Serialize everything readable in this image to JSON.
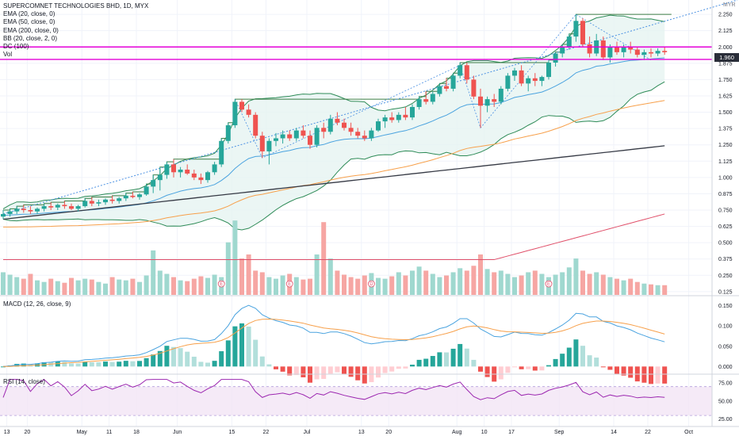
{
  "legend": {
    "title": "SUPERCOMNET TECHNOLOGIES BHD, 1D, MYX",
    "ema20": "EMA (20, close, 0)",
    "ema50": "EMA (50, close, 0)",
    "ema200": "EMA (200, close, 0)",
    "bb": "BB (20, close, 2, 0)",
    "dc": "DC (100)",
    "vol": "Vol"
  },
  "currency_label": "MYR",
  "last_price_label": "1.960",
  "macd_label": "MACD (12, 26, close, 9)",
  "rsi_label": "RSI (14, close)",
  "earnings_marker": "E",
  "dividend_marker": "D",
  "colors": {
    "up": "#26a69a",
    "down": "#ef5350",
    "ema20": "#4aa3df",
    "ema50": "#f7a04b",
    "ema200": "#363a45",
    "bb": "#2e8b57",
    "bb_fill": "#e6f4f1",
    "dc": "#3a7d44",
    "horizontal": "#e400d8",
    "trend": "#4a90e2",
    "macd": "#4aa3df",
    "signal": "#f7a04b",
    "rsi": "#9c27b0",
    "vol_ma": "#e0506a"
  },
  "chart_data": [
    {
      "type": "candlestick",
      "title": "SUPERCOMNET TECHNOLOGIES BHD, 1D, MYX",
      "x_tick_labels": [
        "13",
        "20",
        "May",
        "11",
        "18",
        "Jun",
        "15",
        "22",
        "Jul",
        "13",
        "20",
        "Aug",
        "10",
        "17",
        "Sep",
        "14",
        "22",
        "Oct"
      ],
      "y_tick_labels": [
        "2.250",
        "2.125",
        "2.000",
        "1.875",
        "1.750",
        "1.625",
        "1.500",
        "1.375",
        "1.250",
        "1.125",
        "1.000",
        "0.875",
        "0.750",
        "0.625",
        "0.500",
        "0.375",
        "0.250",
        "0.125"
      ],
      "ylim": [
        0.1,
        2.36
      ],
      "last_price": 1.96,
      "horizontal_levels": [
        2.0,
        1.905
      ],
      "ohlc": [
        [
          0.7,
          0.75,
          0.68,
          0.72
        ],
        [
          0.72,
          0.76,
          0.7,
          0.74
        ],
        [
          0.74,
          0.78,
          0.72,
          0.76
        ],
        [
          0.76,
          0.79,
          0.73,
          0.75
        ],
        [
          0.75,
          0.78,
          0.72,
          0.74
        ],
        [
          0.74,
          0.77,
          0.72,
          0.76
        ],
        [
          0.76,
          0.8,
          0.74,
          0.78
        ],
        [
          0.78,
          0.81,
          0.75,
          0.77
        ],
        [
          0.77,
          0.8,
          0.75,
          0.79
        ],
        [
          0.79,
          0.82,
          0.76,
          0.78
        ],
        [
          0.78,
          0.8,
          0.75,
          0.76
        ],
        [
          0.76,
          0.79,
          0.74,
          0.78
        ],
        [
          0.78,
          0.84,
          0.77,
          0.82
        ],
        [
          0.82,
          0.85,
          0.78,
          0.8
        ],
        [
          0.8,
          0.83,
          0.78,
          0.81
        ],
        [
          0.81,
          0.84,
          0.79,
          0.83
        ],
        [
          0.83,
          0.86,
          0.8,
          0.82
        ],
        [
          0.82,
          0.85,
          0.8,
          0.84
        ],
        [
          0.84,
          0.88,
          0.82,
          0.86
        ],
        [
          0.86,
          0.89,
          0.84,
          0.85
        ],
        [
          0.85,
          0.88,
          0.83,
          0.87
        ],
        [
          0.87,
          0.95,
          0.86,
          0.93
        ],
        [
          0.93,
          1.02,
          0.88,
          0.98
        ],
        [
          0.98,
          1.08,
          0.9,
          1.02
        ],
        [
          1.02,
          1.12,
          0.99,
          1.1
        ],
        [
          1.1,
          1.14,
          1.0,
          1.04
        ],
        [
          1.04,
          1.08,
          1.0,
          1.06
        ],
        [
          1.06,
          1.1,
          1.02,
          1.03
        ],
        [
          1.03,
          1.06,
          0.98,
          1.0
        ],
        [
          1.0,
          1.03,
          0.95,
          0.98
        ],
        [
          0.98,
          1.05,
          0.96,
          1.04
        ],
        [
          1.04,
          1.12,
          1.02,
          1.1
        ],
        [
          1.1,
          1.3,
          1.08,
          1.28
        ],
        [
          1.28,
          1.42,
          1.26,
          1.4
        ],
        [
          1.4,
          1.6,
          1.38,
          1.58
        ],
        [
          1.58,
          1.6,
          1.5,
          1.52
        ],
        [
          1.52,
          1.56,
          1.46,
          1.48
        ],
        [
          1.48,
          1.5,
          1.3,
          1.32
        ],
        [
          1.32,
          1.35,
          1.15,
          1.2
        ],
        [
          1.2,
          1.3,
          1.1,
          1.28
        ],
        [
          1.28,
          1.34,
          1.24,
          1.3
        ],
        [
          1.3,
          1.36,
          1.26,
          1.33
        ],
        [
          1.33,
          1.36,
          1.28,
          1.3
        ],
        [
          1.3,
          1.38,
          1.28,
          1.36
        ],
        [
          1.36,
          1.4,
          1.3,
          1.32
        ],
        [
          1.32,
          1.36,
          1.22,
          1.25
        ],
        [
          1.25,
          1.4,
          1.23,
          1.38
        ],
        [
          1.38,
          1.42,
          1.3,
          1.35
        ],
        [
          1.35,
          1.48,
          1.33,
          1.45
        ],
        [
          1.45,
          1.5,
          1.4,
          1.42
        ],
        [
          1.42,
          1.45,
          1.36,
          1.38
        ],
        [
          1.38,
          1.42,
          1.32,
          1.35
        ],
        [
          1.35,
          1.38,
          1.3,
          1.32
        ],
        [
          1.32,
          1.36,
          1.28,
          1.3
        ],
        [
          1.3,
          1.38,
          1.28,
          1.36
        ],
        [
          1.36,
          1.45,
          1.35,
          1.43
        ],
        [
          1.43,
          1.48,
          1.38,
          1.46
        ],
        [
          1.46,
          1.5,
          1.42,
          1.44
        ],
        [
          1.44,
          1.5,
          1.42,
          1.48
        ],
        [
          1.48,
          1.54,
          1.44,
          1.46
        ],
        [
          1.46,
          1.56,
          1.44,
          1.54
        ],
        [
          1.54,
          1.62,
          1.52,
          1.6
        ],
        [
          1.6,
          1.66,
          1.56,
          1.58
        ],
        [
          1.58,
          1.66,
          1.56,
          1.64
        ],
        [
          1.64,
          1.72,
          1.62,
          1.7
        ],
        [
          1.7,
          1.76,
          1.66,
          1.68
        ],
        [
          1.68,
          1.8,
          1.66,
          1.78
        ],
        [
          1.78,
          1.88,
          1.76,
          1.86
        ],
        [
          1.86,
          1.88,
          1.72,
          1.75
        ],
        [
          1.75,
          1.78,
          1.6,
          1.62
        ],
        [
          1.62,
          1.68,
          1.38,
          1.55
        ],
        [
          1.55,
          1.62,
          1.5,
          1.6
        ],
        [
          1.6,
          1.64,
          1.54,
          1.58
        ],
        [
          1.58,
          1.7,
          1.56,
          1.68
        ],
        [
          1.68,
          1.8,
          1.66,
          1.78
        ],
        [
          1.78,
          1.84,
          1.74,
          1.82
        ],
        [
          1.82,
          1.86,
          1.7,
          1.72
        ],
        [
          1.72,
          1.78,
          1.66,
          1.76
        ],
        [
          1.76,
          1.8,
          1.7,
          1.74
        ],
        [
          1.74,
          1.78,
          1.7,
          1.77
        ],
        [
          1.77,
          1.9,
          1.75,
          1.88
        ],
        [
          1.88,
          1.96,
          1.85,
          1.95
        ],
        [
          1.95,
          2.02,
          1.92,
          2.0
        ],
        [
          2.0,
          2.1,
          1.98,
          2.08
        ],
        [
          2.08,
          2.25,
          2.04,
          2.2
        ],
        [
          2.2,
          2.22,
          2.0,
          2.02
        ],
        [
          2.02,
          2.08,
          1.92,
          1.95
        ],
        [
          1.95,
          2.1,
          1.93,
          2.05
        ],
        [
          2.05,
          2.08,
          1.9,
          1.92
        ],
        [
          1.92,
          2.02,
          1.88,
          2.0
        ],
        [
          2.0,
          2.04,
          1.94,
          1.96
        ],
        [
          1.96,
          2.02,
          1.92,
          2.0
        ],
        [
          2.0,
          2.04,
          1.95,
          1.98
        ],
        [
          1.98,
          2.0,
          1.92,
          1.94
        ],
        [
          1.94,
          1.98,
          1.9,
          1.96
        ],
        [
          1.96,
          1.99,
          1.92,
          1.95
        ],
        [
          1.95,
          1.99,
          1.93,
          1.97
        ],
        [
          1.97,
          2.0,
          1.94,
          1.96
        ]
      ]
    },
    {
      "type": "bar",
      "title": "Vol",
      "series": [
        {
          "name": "Vol",
          "values": [
            0.28,
            0.25,
            0.22,
            0.2,
            0.26,
            0.18,
            0.16,
            0.2,
            0.17,
            0.15,
            0.21,
            0.18,
            0.2,
            0.19,
            0.16,
            0.14,
            0.22,
            0.19,
            0.18,
            0.2,
            0.16,
            0.24,
            0.55,
            0.3,
            0.26,
            0.22,
            0.18,
            0.17,
            0.2,
            0.23,
            0.21,
            0.25,
            0.22,
            0.65,
            0.92,
            0.45,
            0.5,
            0.3,
            0.28,
            0.22,
            0.2,
            0.24,
            0.26,
            0.22,
            0.19,
            0.2,
            0.5,
            0.9,
            0.45,
            0.3,
            0.25,
            0.22,
            0.2,
            0.24,
            0.27,
            0.21,
            0.2,
            0.23,
            0.28,
            0.24,
            0.3,
            0.35,
            0.3,
            0.26,
            0.22,
            0.24,
            0.28,
            0.33,
            0.3,
            0.36,
            0.5,
            0.32,
            0.28,
            0.3,
            0.26,
            0.22,
            0.24,
            0.28,
            0.3,
            0.26,
            0.22,
            0.25,
            0.28,
            0.34,
            0.45,
            0.3,
            0.26,
            0.28,
            0.25,
            0.22,
            0.2,
            0.18,
            0.2,
            0.16,
            0.14,
            0.13,
            0.12,
            0.12
          ]
        }
      ],
      "ylim": [
        0,
        1
      ]
    },
    {
      "type": "line",
      "title": "MACD (12, 26, close, 9)",
      "y_tick_labels": [
        "0.150",
        "0.100",
        "0.050",
        "0.000"
      ],
      "ylim": [
        -0.015,
        0.165
      ]
    },
    {
      "type": "line",
      "title": "RSI (14, close)",
      "y_tick_labels": [
        "75.00",
        "50.00",
        "25.00"
      ],
      "ylim": [
        17,
        85
      ]
    }
  ]
}
